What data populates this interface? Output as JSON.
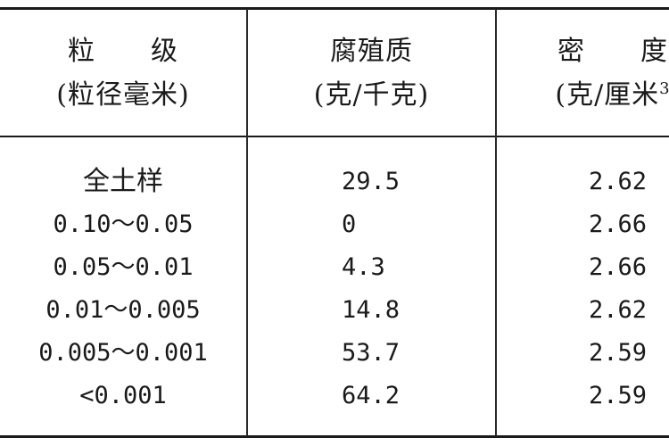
{
  "table": {
    "headers": {
      "particle_size": {
        "title": "粒　　级",
        "unit": "(粒径毫米)"
      },
      "humus": {
        "title": "腐殖质",
        "unit": "(克/千克)"
      },
      "density": {
        "title": "密　　度",
        "unit_prefix": "(克/厘米",
        "unit_sup": "3"
      }
    },
    "rows": [
      {
        "size": "全土样",
        "humus": "29.5",
        "density": "2.62"
      },
      {
        "size": "0.10～0.05",
        "humus": "0",
        "density": "2.66"
      },
      {
        "size": "0.05～0.01",
        "humus": "4.3",
        "density": "2.66"
      },
      {
        "size": "0.01～0.005",
        "humus": "14.8",
        "density": "2.62"
      },
      {
        "size": "0.005～0.001",
        "humus": "53.7",
        "density": "2.59"
      },
      {
        "size": "<0.001",
        "humus": "64.2",
        "density": "2.59"
      }
    ]
  }
}
